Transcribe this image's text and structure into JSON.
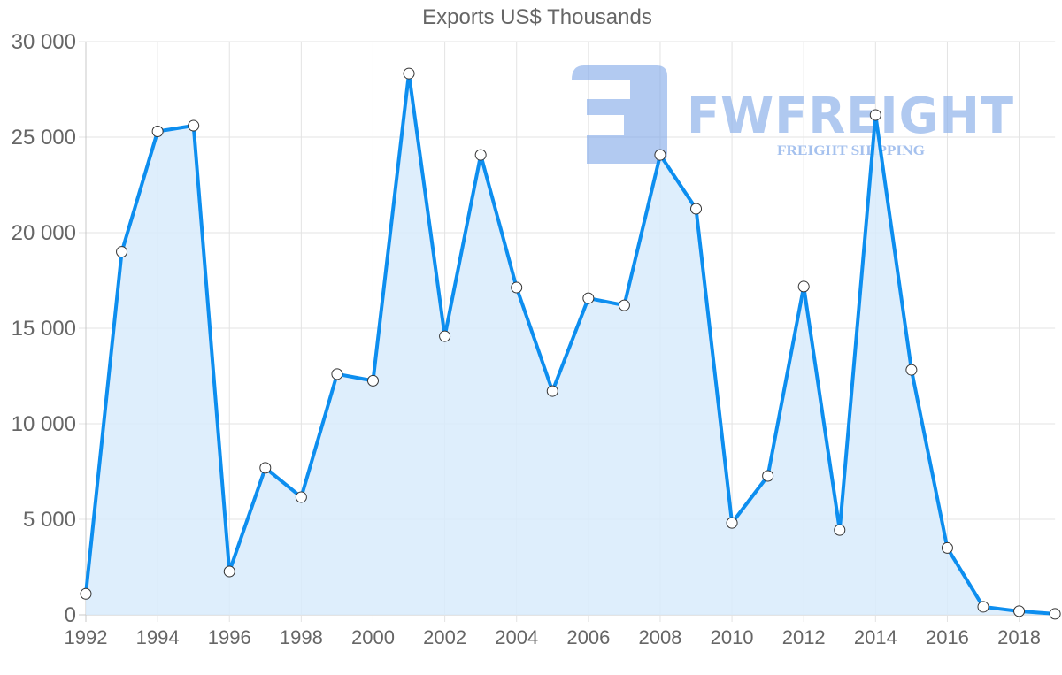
{
  "chart_data": {
    "type": "line",
    "title": "Exports US$ Thousands",
    "xlabel": "",
    "ylabel": "",
    "x": [
      1992,
      1993,
      1994,
      1995,
      1996,
      1997,
      1998,
      1999,
      2000,
      2001,
      2002,
      2003,
      2004,
      2005,
      2006,
      2007,
      2008,
      2009,
      2010,
      2011,
      2012,
      2013,
      2014,
      2015,
      2016,
      2017,
      2018,
      2019
    ],
    "series": [
      {
        "name": "Exports US$ Thousands",
        "values": [
          1100,
          19000,
          25300,
          25600,
          2270,
          7690,
          6160,
          12600,
          12250,
          28330,
          14580,
          24070,
          17130,
          11710,
          16570,
          16200,
          24070,
          21250,
          4810,
          7270,
          17180,
          4440,
          26160,
          12820,
          3500,
          420,
          190,
          50
        ],
        "color": "#0d8eef",
        "fill": "#d8ebfc"
      }
    ],
    "ylim": [
      0,
      30000
    ],
    "yticks": [
      0,
      5000,
      10000,
      15000,
      20000,
      25000,
      30000
    ],
    "ytick_labels": [
      "0",
      "5 000",
      "10 000",
      "15 000",
      "20 000",
      "25 000",
      "30 000"
    ],
    "xticks": [
      1992,
      1994,
      1996,
      1998,
      2000,
      2002,
      2004,
      2006,
      2008,
      2010,
      2012,
      2014,
      2016,
      2018
    ],
    "xtick_labels": [
      "1992",
      "1994",
      "1996",
      "1998",
      "2000",
      "2002",
      "2004",
      "2006",
      "2008",
      "2010",
      "2012",
      "2014",
      "2016",
      "2018"
    ],
    "grid": true,
    "legend": "none"
  },
  "watermark": {
    "brand": "FWFREIGHT",
    "tagline": "FREIGHT SHIPPING",
    "color": "#8fb2ea"
  },
  "colors": {
    "line": "#0d8eef",
    "area": "#d8ebfc",
    "grid": "#e3e3e3",
    "axis": "#c8c8c8",
    "text": "#666666"
  }
}
